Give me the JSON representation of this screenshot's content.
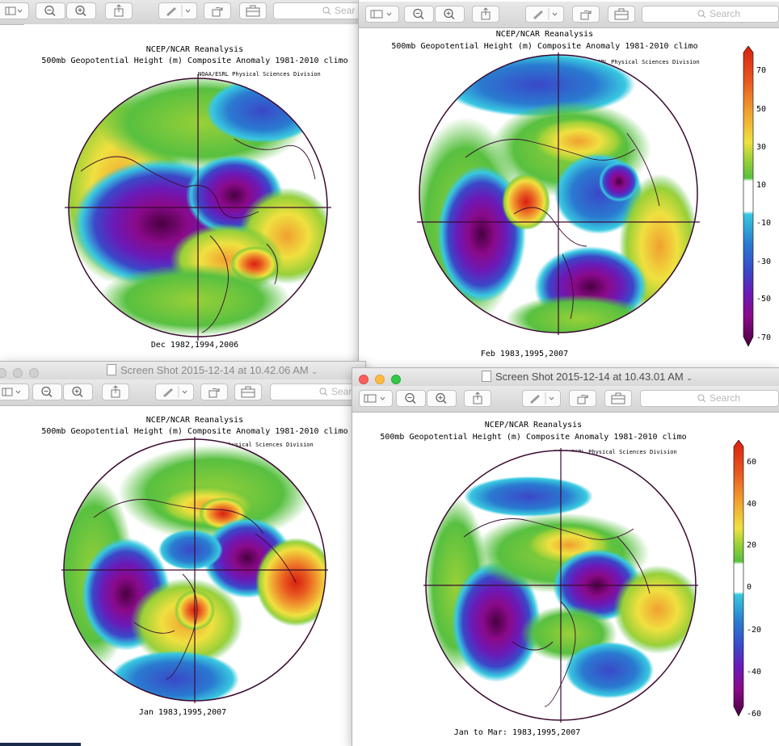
{
  "icons": {
    "sidebar": "sidebar-toggle-icon",
    "zoom_out": "zoom-out-icon",
    "zoom_in": "zoom-in-icon",
    "share": "share-icon",
    "markup": "pen-markup-icon",
    "rotate": "rotate-icon",
    "toolbox": "toolbox-icon",
    "search": "magnifier-icon",
    "document": "document-icon"
  },
  "toolbar": {
    "search_placeholder": "Search",
    "search_placeholder_truncated": "Sear"
  },
  "windows": {
    "dec": {
      "map": {
        "line1": "NCEP/NCAR Reanalysis",
        "line2": "500mb Geopotential Height (m) Composite Anomaly 1981-2010 climo",
        "line3": "NOAA/ESRL Physical Sciences Division",
        "caption": "Dec 1982,1994,2006"
      }
    },
    "feb": {
      "map": {
        "line1": "NCEP/NCAR Reanalysis",
        "line2": "500mb Geopotential Height (m) Composite Anomaly 1981-2010 climo",
        "line3": "NOAA/ESRL Physical Sciences Division",
        "caption": "Feb 1983,1995,2007"
      },
      "colorbar_labels": [
        "70",
        "50",
        "30",
        "10",
        "-10",
        "-30",
        "-50",
        "-70"
      ]
    },
    "jan": {
      "title": "Screen Shot 2015-12-14 at 10.42.06 AM",
      "map": {
        "line1": "NCEP/NCAR Reanalysis",
        "line2": "500mb Geopotential Height (m) Composite Anomaly 1981-2010 climo",
        "line3": "NOAA/ESRL Physical Sciences Division",
        "caption": "Jan 1983,1995,2007"
      }
    },
    "jfm": {
      "title": "Screen Shot 2015-12-14 at 10.43.01 AM",
      "map": {
        "line1": "NCEP/NCAR Reanalysis",
        "line2": "500mb Geopotential Height (m) Composite Anomaly 1981-2010 climo",
        "line3": "NOAA/ESRL Physical Sciences Division",
        "caption": "Jan to Mar: 1983,1995,2007"
      },
      "colorbar_labels": [
        "60",
        "40",
        "20",
        "0",
        "-20",
        "-40",
        "-60"
      ]
    }
  },
  "colors": {
    "scale": [
      "#4a0040",
      "#8a0a8a",
      "#6a1ab8",
      "#3a48c8",
      "#2a7ad0",
      "#38c8e0",
      "#ffffff",
      "#58c040",
      "#98d038",
      "#f0e040",
      "#f0a030",
      "#e85a20",
      "#d82010"
    ],
    "ocean_bg": "#ffffff",
    "coast": "#3a0a30"
  }
}
